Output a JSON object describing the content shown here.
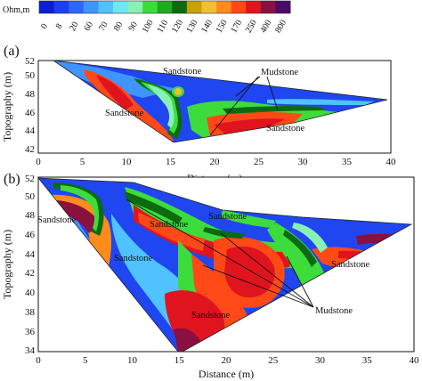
{
  "chart_data": [
    {
      "type": "heatmap",
      "panel_label": "(a)",
      "xlabel": "Distance (m)",
      "ylabel": "Topography (m)",
      "xlim": [
        0,
        40
      ],
      "ylim": [
        42,
        52
      ],
      "xticks": [
        0,
        5,
        10,
        15,
        20,
        25,
        30,
        35,
        40
      ],
      "yticks": [
        42,
        44,
        46,
        48,
        50,
        52
      ],
      "annotations": [
        "Sandstone",
        "Mudstone",
        "Sandstone",
        "Sandstone"
      ]
    },
    {
      "type": "heatmap",
      "panel_label": "(b)",
      "xlabel": "Distance (m)",
      "ylabel": "Topography (m)",
      "xlim": [
        0,
        40
      ],
      "ylim": [
        34,
        52
      ],
      "xticks": [
        0,
        5,
        10,
        15,
        20,
        25,
        30,
        35,
        40
      ],
      "yticks": [
        34,
        36,
        38,
        40,
        42,
        44,
        46,
        48,
        50,
        52
      ],
      "annotations": [
        "Sandstone",
        "Sandstone",
        "Sandstone",
        "Sandstone",
        "Sandstone",
        "Sandstone",
        "Mudstone"
      ]
    }
  ],
  "colorbar": {
    "unit": "Ohm,m",
    "labels": [
      "0",
      "8",
      "20",
      "60",
      "70",
      "80",
      "90",
      "100",
      "110",
      "120",
      "130",
      "140",
      "150",
      "170",
      "250",
      "400",
      "800"
    ],
    "colors": [
      "#0a1fd0",
      "#1a3ef0",
      "#2f66ff",
      "#3f95ff",
      "#4fc2ff",
      "#6fe6f0",
      "#88f0b4",
      "#3ddc3d",
      "#1faa22",
      "#0d6a10",
      "#c8a200",
      "#f0c030",
      "#ff8c1a",
      "#ff4a18",
      "#e0141e",
      "#8a1040",
      "#4a0a6a"
    ]
  }
}
